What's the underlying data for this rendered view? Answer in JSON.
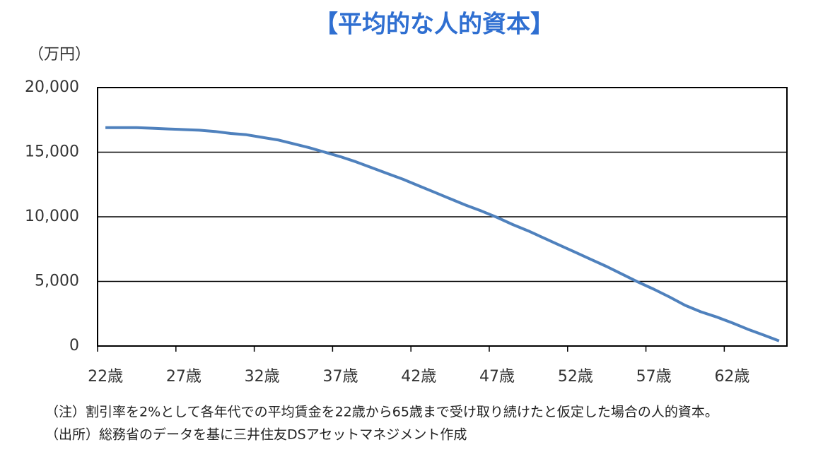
{
  "chart_data": {
    "type": "line",
    "title": "【平均的な人的資本】",
    "y_label": "（万円）",
    "categories": [
      "22歳",
      null,
      null,
      null,
      null,
      "27歳",
      null,
      null,
      null,
      null,
      "32歳",
      null,
      null,
      null,
      null,
      "37歳",
      null,
      null,
      null,
      null,
      "42歳",
      null,
      null,
      null,
      null,
      "47歳",
      null,
      null,
      null,
      null,
      "52歳",
      null,
      null,
      null,
      null,
      "57歳",
      null,
      null,
      null,
      null,
      "62歳",
      null,
      null,
      null
    ],
    "series": [
      {
        "name": "平均的な人的資本",
        "color": "#4f81bd",
        "values": [
          16900,
          16900,
          16900,
          16850,
          16800,
          16750,
          16700,
          16600,
          16450,
          16350,
          16150,
          15950,
          15650,
          15350,
          15000,
          14650,
          14250,
          13800,
          13350,
          12900,
          12400,
          11900,
          11400,
          10900,
          10450,
          9950,
          9400,
          8900,
          8350,
          7800,
          7250,
          6700,
          6150,
          5550,
          4950,
          4400,
          3800,
          3150,
          2650,
          2250,
          1800,
          1300,
          850,
          400
        ]
      }
    ],
    "ylim": [
      0,
      20000
    ],
    "yticks": [
      0,
      {
        "value": 5000,
        "label": "5,000"
      },
      {
        "value": 10000,
        "label": "10,000"
      },
      {
        "value": 15000,
        "label": "15,000"
      },
      {
        "value": 20000,
        "label": "20,000"
      }
    ],
    "grid": true,
    "notes": [
      "（注）割引率を2%として各年代での平均賃金を22歳から65歳まで受け取り続けたと仮定した場合の人的資本。",
      "（出所）総務省のデータを基に三井住友DSアセットマネジメント作成"
    ]
  }
}
